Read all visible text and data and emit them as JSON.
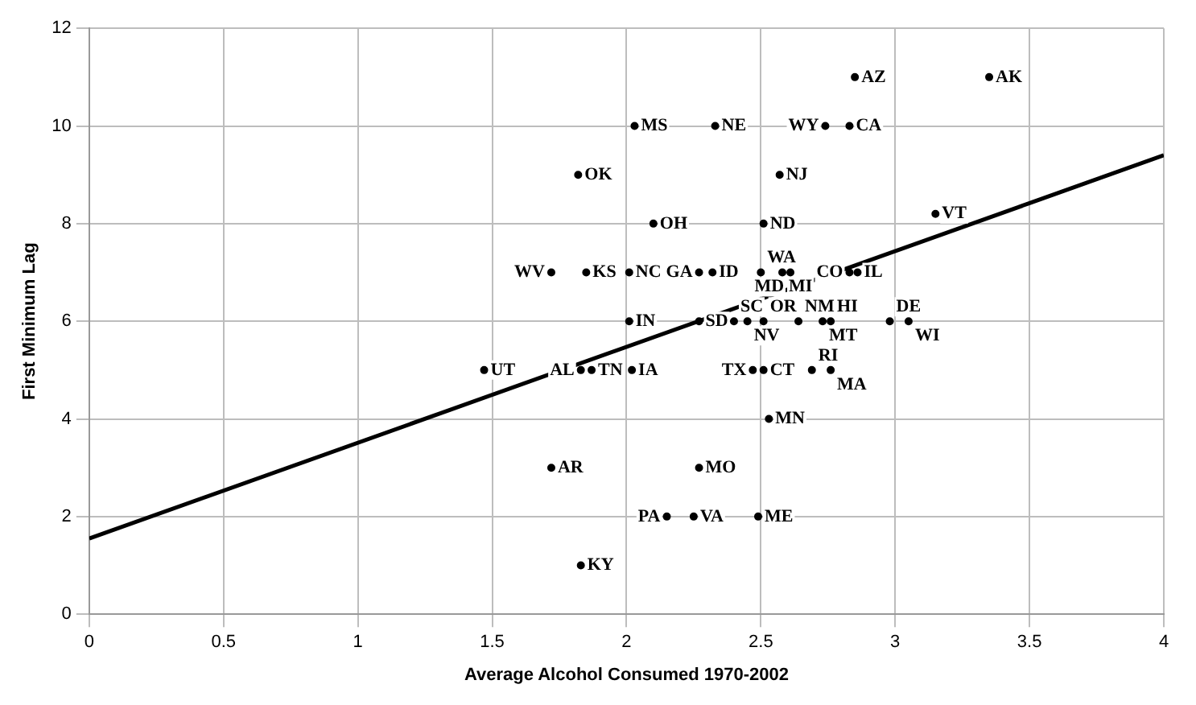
{
  "chart_data": {
    "type": "scatter",
    "xlabel": "Average Alcohol Consumed 1970-2002",
    "ylabel": "First Minimum Lag",
    "xlim": [
      0,
      4
    ],
    "xticks": [
      0,
      0.5,
      1,
      1.5,
      2,
      2.5,
      3,
      3.5,
      4
    ],
    "ylim": [
      0,
      12
    ],
    "yticks": [
      0,
      2,
      4,
      6,
      8,
      10,
      12
    ],
    "grid": true,
    "series": [
      {
        "color": "#000000",
        "marker": "circle",
        "x": [
          2.85,
          3.35,
          2.03,
          2.33,
          2.74,
          2.83,
          1.82,
          2.57,
          2.1,
          2.51,
          3.15,
          1.72,
          1.85,
          2.01,
          2.27,
          2.32,
          2.5,
          2.58,
          2.61,
          2.83,
          2.86,
          2.01,
          2.27,
          2.4,
          2.45,
          2.51,
          2.64,
          2.73,
          2.76,
          2.98,
          3.05,
          1.47,
          1.83,
          1.87,
          2.02,
          2.47,
          2.51,
          2.69,
          2.76,
          2.53,
          1.72,
          2.27,
          2.15,
          2.25,
          2.49,
          1.83
        ],
        "values": [
          11,
          11,
          10,
          10,
          10,
          10,
          9,
          9,
          8,
          8,
          8.2,
          7,
          7,
          7,
          7,
          7,
          7,
          7,
          7,
          7,
          7,
          6,
          6,
          6,
          6,
          6,
          6,
          6,
          6,
          6,
          6,
          5,
          5,
          5,
          5,
          5,
          5,
          5,
          5,
          4,
          3,
          3,
          2,
          2,
          2,
          1
        ],
        "value_labels": [
          "AZ",
          "AK",
          "MS",
          "NE",
          "WY",
          "CA",
          "OK",
          "NJ",
          "OH",
          "ND",
          "VT",
          "WV",
          "KS",
          "NC",
          "GA",
          "ID",
          "WA",
          "MI",
          "MD",
          "CO",
          "IL",
          "IN",
          "SD",
          "SC",
          "NV",
          "OR",
          "NM",
          "MT",
          "HI",
          "DE",
          "WI",
          "UT",
          "AL",
          "TN",
          "IA",
          "TX",
          "CT",
          "RI",
          "MA",
          "MN",
          "AR",
          "MO",
          "PA",
          "VA",
          "ME",
          "KY"
        ]
      },
      {
        "type": "line",
        "color": "#000000",
        "x": [
          0,
          4
        ],
        "values": [
          1.55,
          9.4
        ]
      }
    ]
  }
}
